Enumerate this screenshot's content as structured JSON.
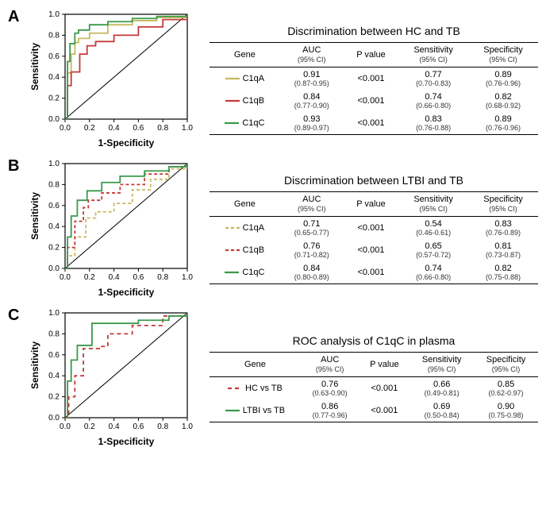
{
  "panels": [
    {
      "label": "A",
      "title": "Discrimination between HC and TB",
      "chart": {
        "type": "roc",
        "xlabel": "1-Specificity",
        "ylabel": "Sensitivity",
        "xlim": [
          0,
          1
        ],
        "ylim": [
          0,
          1
        ],
        "xtick_step": 0.2,
        "ytick_step": 0.2,
        "tick_fontsize": 10,
        "label_fontsize": 12,
        "background_color": "#ffffff",
        "diagonal_color": "#000000",
        "curves": [
          {
            "name": "C1qA",
            "color": "#c9b85f",
            "dash": "none",
            "points": [
              [
                0,
                0
              ],
              [
                0.02,
                0.44
              ],
              [
                0.05,
                0.62
              ],
              [
                0.08,
                0.73
              ],
              [
                0.11,
                0.77
              ],
              [
                0.2,
                0.82
              ],
              [
                0.35,
                0.9
              ],
              [
                0.55,
                0.94
              ],
              [
                0.75,
                0.97
              ],
              [
                1,
                1
              ]
            ]
          },
          {
            "name": "C1qB",
            "color": "#c43a3a",
            "dash": "none",
            "points": [
              [
                0,
                0
              ],
              [
                0.02,
                0.32
              ],
              [
                0.05,
                0.45
              ],
              [
                0.12,
                0.62
              ],
              [
                0.18,
                0.7
              ],
              [
                0.25,
                0.74
              ],
              [
                0.4,
                0.8
              ],
              [
                0.6,
                0.88
              ],
              [
                0.8,
                0.95
              ],
              [
                1,
                1
              ]
            ]
          },
          {
            "name": "C1qC",
            "color": "#3a9a4a",
            "dash": "none",
            "points": [
              [
                0,
                0
              ],
              [
                0.02,
                0.55
              ],
              [
                0.04,
                0.72
              ],
              [
                0.08,
                0.82
              ],
              [
                0.11,
                0.85
              ],
              [
                0.2,
                0.9
              ],
              [
                0.35,
                0.93
              ],
              [
                0.55,
                0.96
              ],
              [
                0.75,
                0.98
              ],
              [
                1,
                1
              ]
            ]
          }
        ]
      },
      "table": {
        "columns": [
          "Gene",
          "AUC\n(95% CI)",
          "P value",
          "Sensitivity\n(95% CI)",
          "Specificity\n(95% CI)"
        ],
        "rows": [
          {
            "swatch": "#c9b85f",
            "dash": "none",
            "gene": "C1qA",
            "auc": "0.91",
            "auc_ci": "(0.87-0.95)",
            "p": "<0.001",
            "sens": "0.77",
            "sens_ci": "(0.70-0.83)",
            "spec": "0.89",
            "spec_ci": "(0.76-0.96)"
          },
          {
            "swatch": "#c43a3a",
            "dash": "none",
            "gene": "C1qB",
            "auc": "0.84",
            "auc_ci": "(0.77-0.90)",
            "p": "<0.001",
            "sens": "0.74",
            "sens_ci": "(0.66-0.80)",
            "spec": "0.82",
            "spec_ci": "(0.68-0.92)"
          },
          {
            "swatch": "#3a9a4a",
            "dash": "none",
            "gene": "C1qC",
            "auc": "0.93",
            "auc_ci": "(0.89-0.97)",
            "p": "<0.001",
            "sens": "0.83",
            "sens_ci": "(0.76-0.88)",
            "spec": "0.89",
            "spec_ci": "(0.76-0.96)"
          }
        ]
      }
    },
    {
      "label": "B",
      "title": "Discrimination between LTBI and TB",
      "chart": {
        "type": "roc",
        "xlabel": "1-Specificity",
        "ylabel": "Sensitivity",
        "xlim": [
          0,
          1
        ],
        "ylim": [
          0,
          1
        ],
        "xtick_step": 0.2,
        "ytick_step": 0.2,
        "tick_fontsize": 10,
        "label_fontsize": 12,
        "background_color": "#ffffff",
        "diagonal_color": "#000000",
        "curves": [
          {
            "name": "C1qA",
            "color": "#c9b85f",
            "dash": "4,3",
            "points": [
              [
                0,
                0
              ],
              [
                0.02,
                0.12
              ],
              [
                0.08,
                0.3
              ],
              [
                0.17,
                0.48
              ],
              [
                0.25,
                0.54
              ],
              [
                0.4,
                0.62
              ],
              [
                0.55,
                0.75
              ],
              [
                0.7,
                0.85
              ],
              [
                0.85,
                0.95
              ],
              [
                1,
                1
              ]
            ]
          },
          {
            "name": "C1qB",
            "color": "#c43a3a",
            "dash": "4,3",
            "points": [
              [
                0,
                0
              ],
              [
                0.02,
                0.2
              ],
              [
                0.08,
                0.45
              ],
              [
                0.15,
                0.58
              ],
              [
                0.19,
                0.65
              ],
              [
                0.3,
                0.72
              ],
              [
                0.45,
                0.8
              ],
              [
                0.65,
                0.9
              ],
              [
                0.85,
                0.97
              ],
              [
                1,
                1
              ]
            ]
          },
          {
            "name": "C1qC",
            "color": "#3a9a4a",
            "dash": "none",
            "points": [
              [
                0,
                0
              ],
              [
                0.02,
                0.3
              ],
              [
                0.05,
                0.5
              ],
              [
                0.1,
                0.65
              ],
              [
                0.18,
                0.74
              ],
              [
                0.3,
                0.82
              ],
              [
                0.45,
                0.88
              ],
              [
                0.65,
                0.93
              ],
              [
                0.85,
                0.97
              ],
              [
                1,
                1
              ]
            ]
          }
        ]
      },
      "table": {
        "columns": [
          "Gene",
          "AUC\n(95% CI)",
          "P value",
          "Sensitivity\n(95% CI)",
          "Specificity\n(95% CI)"
        ],
        "rows": [
          {
            "swatch": "#c9b85f",
            "dash": "4,3",
            "gene": "C1qA",
            "auc": "0.71",
            "auc_ci": "(0.65-0.77)",
            "p": "<0.001",
            "sens": "0.54",
            "sens_ci": "(0.46-0.61)",
            "spec": "0.83",
            "spec_ci": "(0.76-0.89)"
          },
          {
            "swatch": "#c43a3a",
            "dash": "4,3",
            "gene": "C1qB",
            "auc": "0.76",
            "auc_ci": "(0.71-0.82)",
            "p": "<0.001",
            "sens": "0.65",
            "sens_ci": "(0.57-0.72)",
            "spec": "0.81",
            "spec_ci": "(0.73-0.87)"
          },
          {
            "swatch": "#3a9a4a",
            "dash": "none",
            "gene": "C1qC",
            "auc": "0.84",
            "auc_ci": "(0.80-0.89)",
            "p": "<0.001",
            "sens": "0.74",
            "sens_ci": "(0.66-0.80)",
            "spec": "0.82",
            "spec_ci": "(0.75-0.88)"
          }
        ]
      }
    },
    {
      "label": "C",
      "title": "ROC analysis of C1qC in plasma",
      "chart": {
        "type": "roc",
        "xlabel": "1-Specificity",
        "ylabel": "Sensitivity",
        "xlim": [
          0,
          1
        ],
        "ylim": [
          0,
          1
        ],
        "xtick_step": 0.2,
        "ytick_step": 0.2,
        "tick_fontsize": 10,
        "label_fontsize": 12,
        "background_color": "#ffffff",
        "diagonal_color": "#000000",
        "curves": [
          {
            "name": "HC vs TB",
            "color": "#c43a3a",
            "dash": "5,4",
            "points": [
              [
                0,
                0
              ],
              [
                0.03,
                0.2
              ],
              [
                0.08,
                0.4
              ],
              [
                0.15,
                0.55
              ],
              [
                0.15,
                0.66
              ],
              [
                0.28,
                0.68
              ],
              [
                0.35,
                0.8
              ],
              [
                0.55,
                0.88
              ],
              [
                0.8,
                0.97
              ],
              [
                1,
                1
              ]
            ]
          },
          {
            "name": "LTBI vs TB",
            "color": "#3a9a4a",
            "dash": "none",
            "points": [
              [
                0,
                0
              ],
              [
                0.02,
                0.35
              ],
              [
                0.05,
                0.55
              ],
              [
                0.1,
                0.69
              ],
              [
                0.1,
                0.69
              ],
              [
                0.22,
                0.9
              ],
              [
                0.4,
                0.9
              ],
              [
                0.6,
                0.93
              ],
              [
                0.85,
                0.97
              ],
              [
                1,
                1
              ]
            ]
          }
        ]
      },
      "table": {
        "columns": [
          "Gene",
          "AUC\n(95% CI)",
          "P value",
          "Sensitivity\n(95% CI)",
          "Specificity\n(95% CI)"
        ],
        "rows": [
          {
            "swatch": "#c43a3a",
            "dash": "5,4",
            "gene": "HC vs TB",
            "auc": "0.76",
            "auc_ci": "(0.63-0.90)",
            "p": "<0.001",
            "sens": "0.66",
            "sens_ci": "(0.49-0.81)",
            "spec": "0.85",
            "spec_ci": "(0.62-0.97)"
          },
          {
            "swatch": "#3a9a4a",
            "dash": "none",
            "gene": "LTBI vs TB",
            "auc": "0.86",
            "auc_ci": "(0.77-0.96)",
            "p": "<0.001",
            "sens": "0.69",
            "sens_ci": "(0.50-0.84)",
            "spec": "0.90",
            "spec_ci": "(0.75-0.98)"
          }
        ]
      }
    }
  ]
}
